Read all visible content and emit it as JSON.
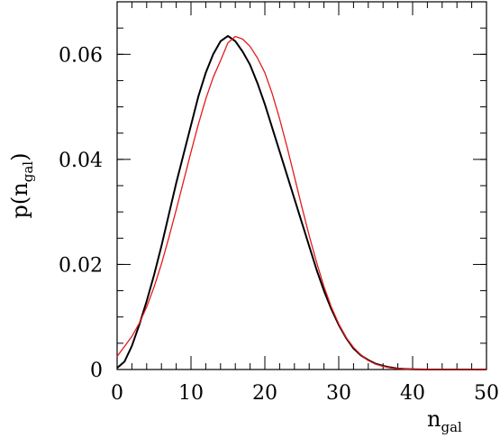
{
  "chart_data": {
    "type": "line",
    "xlabel": "n",
    "xlabel_sub": "gal",
    "ylabel": "p(n",
    "ylabel_sub": "gal",
    "ylabel_close": ")",
    "xlim": [
      0,
      50
    ],
    "ylim": [
      0,
      0.07
    ],
    "x_ticks": [
      0,
      10,
      20,
      30,
      40,
      50
    ],
    "x_tick_labels": [
      "0",
      "10",
      "20",
      "30",
      "40",
      "50"
    ],
    "y_ticks": [
      0,
      0.02,
      0.04,
      0.06
    ],
    "y_tick_labels": [
      "0",
      "0.02",
      "0.04",
      "0.06"
    ],
    "x_minor_step": 2,
    "y_minor_step": 0.005,
    "grid": false,
    "legend": "none",
    "series": [
      {
        "color": "#000000",
        "x": [
          0,
          1,
          2,
          3,
          4,
          5,
          6,
          7,
          8,
          9,
          10,
          11,
          12,
          13,
          14,
          15,
          16,
          17,
          18,
          19,
          20,
          21,
          22,
          23,
          24,
          25,
          26,
          27,
          28,
          29,
          30,
          31,
          32,
          33,
          34,
          35,
          36,
          37,
          38,
          39,
          40,
          41,
          42,
          43,
          44,
          45,
          46,
          47,
          48,
          49,
          50
        ],
        "y": [
          0.0003,
          0.0015,
          0.0045,
          0.0085,
          0.013,
          0.018,
          0.0235,
          0.0295,
          0.0355,
          0.041,
          0.0465,
          0.052,
          0.0565,
          0.06,
          0.0625,
          0.0635,
          0.0625,
          0.0605,
          0.058,
          0.0545,
          0.0505,
          0.046,
          0.0415,
          0.037,
          0.0325,
          0.028,
          0.0235,
          0.019,
          0.015,
          0.0115,
          0.0085,
          0.006,
          0.004,
          0.0027,
          0.0018,
          0.0011,
          0.0007,
          0.0004,
          0.0002,
          0.0001,
          5e-05,
          2e-05,
          1e-05,
          0,
          0,
          0,
          0,
          0,
          0,
          0,
          0
        ]
      },
      {
        "color": "#e41a1c",
        "x": [
          0,
          1,
          2,
          3,
          4,
          5,
          6,
          7,
          8,
          9,
          10,
          11,
          12,
          13,
          14,
          15,
          16,
          17,
          18,
          19,
          20,
          21,
          22,
          23,
          24,
          25,
          26,
          27,
          28,
          29,
          30,
          31,
          32,
          33,
          34,
          35,
          36,
          37,
          38,
          39,
          40,
          41,
          42,
          43,
          44,
          45,
          46,
          47,
          48,
          49,
          50
        ],
        "y": [
          0.0025,
          0.0044,
          0.0063,
          0.0088,
          0.0119,
          0.0157,
          0.0201,
          0.0251,
          0.0304,
          0.0359,
          0.0414,
          0.0467,
          0.0515,
          0.0556,
          0.0588,
          0.0622,
          0.0634,
          0.0629,
          0.0615,
          0.0593,
          0.0565,
          0.0525,
          0.0477,
          0.0424,
          0.0367,
          0.031,
          0.0255,
          0.0204,
          0.0158,
          0.0119,
          0.0087,
          0.0061,
          0.0042,
          0.0028,
          0.0017,
          0.001,
          0.0006,
          0.0003,
          0.0002,
          0.0001,
          4e-05,
          2e-05,
          1e-05,
          0,
          0,
          0,
          0,
          0,
          0,
          0,
          0
        ]
      }
    ]
  }
}
